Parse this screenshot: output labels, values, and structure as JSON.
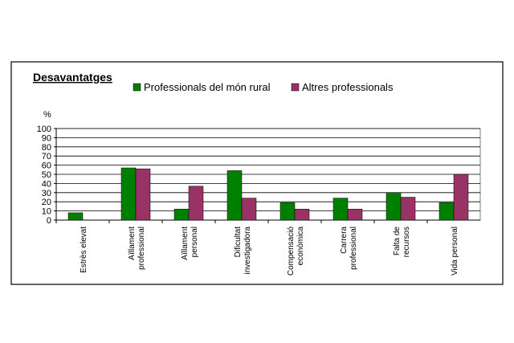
{
  "chart_data": {
    "type": "bar",
    "title": "Desavantatges",
    "y_label": "%",
    "categories": [
      [
        "Estrès elevat"
      ],
      [
        "Aïllament",
        "professional"
      ],
      [
        "Aïllament",
        "personal"
      ],
      [
        "Dificultat",
        "investigadora"
      ],
      [
        "Compensació",
        "econòmica"
      ],
      [
        "Carrera",
        "professional"
      ],
      [
        "Falta de",
        "recursos"
      ],
      [
        "Vida personal"
      ]
    ],
    "series": [
      {
        "name": "Professionals del món rural",
        "color": "#008000",
        "values": [
          8,
          57,
          12,
          54,
          19,
          24,
          30,
          19
        ]
      },
      {
        "name": "Altres professionals",
        "color": "#993366",
        "values": [
          0,
          56,
          37,
          24,
          12,
          12,
          25,
          50
        ]
      }
    ],
    "ylim": [
      0,
      100
    ],
    "yticks": [
      0,
      10,
      20,
      30,
      40,
      50,
      60,
      70,
      80,
      90,
      100
    ],
    "grid": true
  }
}
